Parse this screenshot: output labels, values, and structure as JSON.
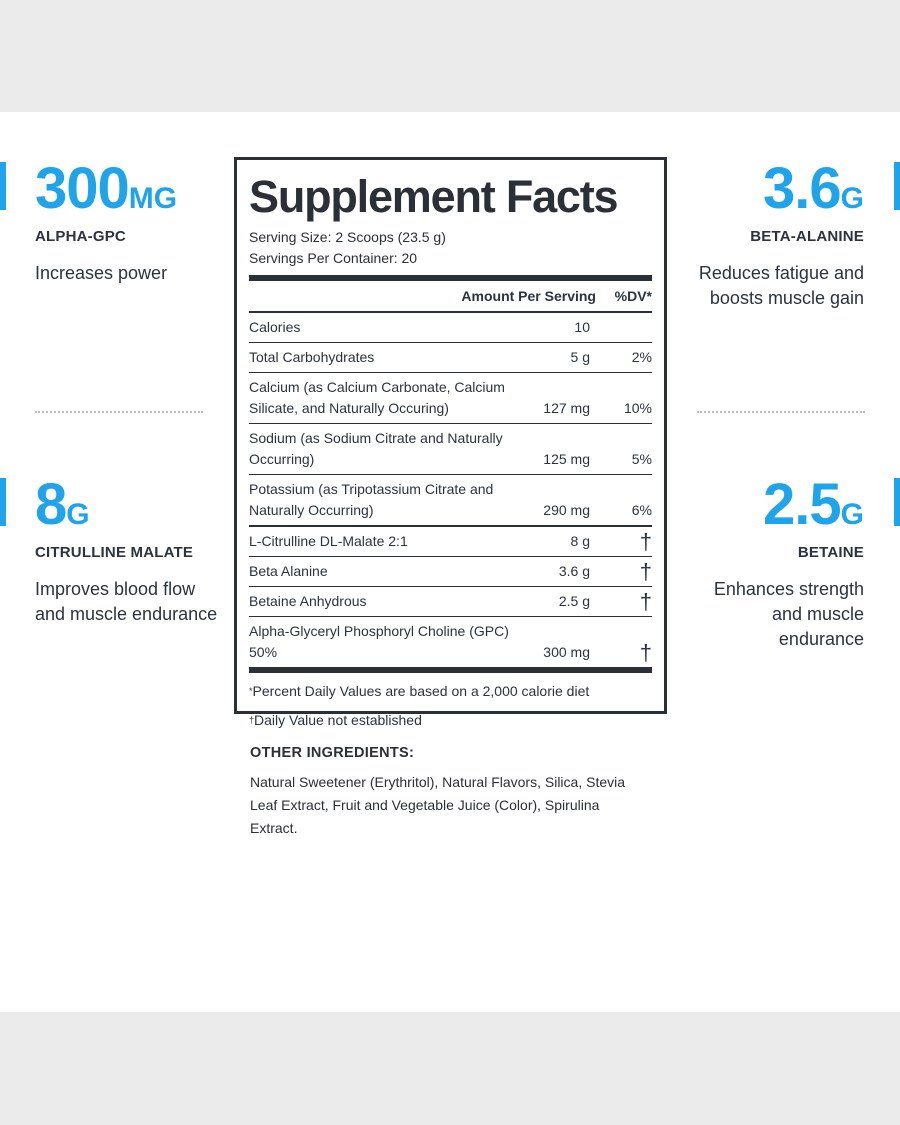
{
  "stats": [
    {
      "value": "300",
      "unit": "MG",
      "name": "ALPHA-GPC",
      "desc": "Increases power"
    },
    {
      "value": "3.6",
      "unit": "G",
      "name": "BETA-ALANINE",
      "desc": "Reduces fatigue and boosts muscle gain"
    },
    {
      "value": "8",
      "unit": "G",
      "name": "CITRULLINE MALATE",
      "desc": "Improves blood flow and muscle endurance"
    },
    {
      "value": "2.5",
      "unit": "G",
      "name": "BETAINE",
      "desc": "Enhances strength and muscle endurance"
    }
  ],
  "facts": {
    "title": "Supplement Facts",
    "serving_size": "Serving Size: 2 Scoops (23.5 g)",
    "servings_per_container": "Servings Per Container: 20",
    "header_amount": "Amount Per Serving",
    "header_dv": "%DV*",
    "rows": [
      {
        "label": "Calories",
        "amount": "10",
        "dv": ""
      },
      {
        "label": "Total Carbohydrates",
        "amount": "5 g",
        "dv": "2%"
      },
      {
        "label": "Calcium (as Calcium Carbonate, Calcium Silicate, and Naturally Occuring)",
        "amount": "127 mg",
        "dv": "10%"
      },
      {
        "label": "Sodium (as Sodium Citrate and Naturally Occurring)",
        "amount": "125 mg",
        "dv": "5%"
      },
      {
        "label": "Potassium (as Tripotassium Citrate and Naturally Occurring)",
        "amount": "290 mg",
        "dv": "6%"
      },
      {
        "label": "L-Citrulline DL-Malate 2:1",
        "amount": "8 g",
        "dv": "†"
      },
      {
        "label": "Beta Alanine",
        "amount": "3.6 g",
        "dv": "†"
      },
      {
        "label": "Betaine Anhydrous",
        "amount": "2.5 g",
        "dv": "†"
      },
      {
        "label": "Alpha-Glyceryl Phosphoryl Choline (GPC) 50%",
        "amount": "300 mg",
        "dv": "†"
      }
    ],
    "footnote_1_mark": "*",
    "footnote_1": "Percent Daily Values are based on a 2,000 calorie diet",
    "footnote_2_mark": "†",
    "footnote_2": "Daily Value not established"
  },
  "other_ingredients": {
    "heading": "OTHER INGREDIENTS:",
    "text": "Natural Sweetener (Erythritol), Natural Flavors, Silica, Stevia Leaf Extract, Fruit and Vegetable Juice (Color), Spirulina Extract."
  },
  "colors": {
    "accent": "#1fa3ea",
    "text": "#2b3340",
    "background_band": "#ebebeb"
  }
}
